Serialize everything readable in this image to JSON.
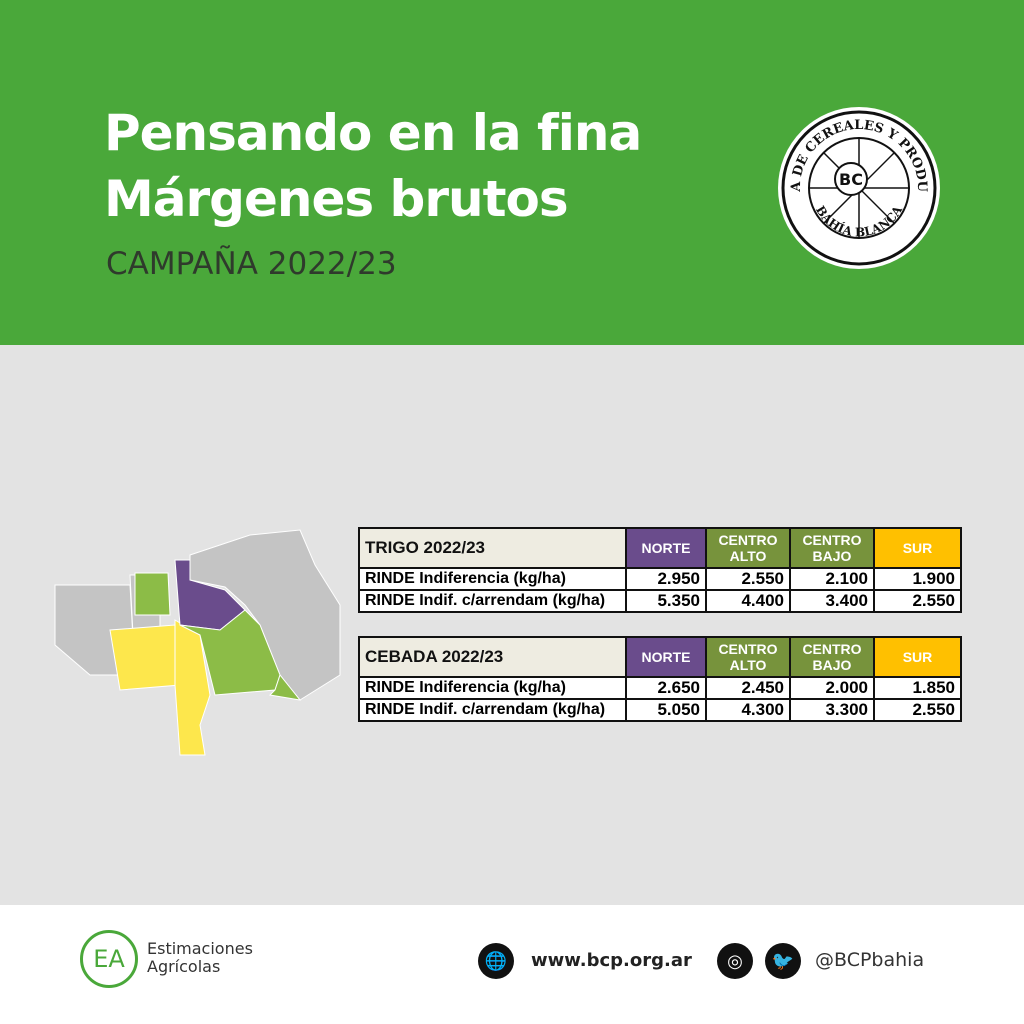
{
  "header": {
    "title_line1": "Pensando en la fina",
    "title_line2": "Márgenes brutos",
    "subtitle": "CAMPAÑA 2022/23"
  },
  "logo": {
    "text_top": "BOLSA DE CEREALES Y PRODUCTOS",
    "text_bottom": "BAHÍA BLANCA",
    "mark": "BC"
  },
  "colors": {
    "header": "#4aa83a",
    "norte": "#6a4c8c",
    "centro": "#77933c",
    "sur": "#ffc000"
  },
  "regions": [
    "NORTE",
    "CENTRO ALTO",
    "CENTRO BAJO",
    "SUR"
  ],
  "tables": [
    {
      "title": "TRIGO 2022/23",
      "rows": [
        {
          "label": "RINDE Indiferencia (kg/ha)",
          "values": [
            "2.950",
            "2.550",
            "2.100",
            "1.900"
          ]
        },
        {
          "label": "RINDE Indif. c/arrendam (kg/ha)",
          "values": [
            "5.350",
            "4.400",
            "3.400",
            "2.550"
          ]
        }
      ]
    },
    {
      "title": "CEBADA 2022/23",
      "rows": [
        {
          "label": "RINDE Indiferencia (kg/ha)",
          "values": [
            "2.650",
            "2.450",
            "2.000",
            "1.850"
          ]
        },
        {
          "label": "RINDE Indif. c/arrendam (kg/ha)",
          "values": [
            "5.050",
            "4.300",
            "3.300",
            "2.550"
          ]
        }
      ]
    }
  ],
  "footer": {
    "brand_line1": "Estimaciones",
    "brand_line2": "Agrícolas",
    "brand_mark": "EA",
    "website": "www.bcp.org.ar",
    "handle": "@BCPbahia"
  }
}
